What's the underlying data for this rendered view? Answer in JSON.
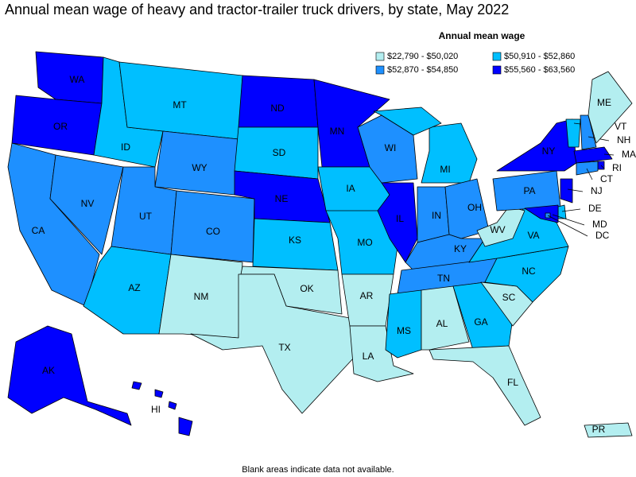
{
  "title": "Annual mean wage of heavy and tractor-trailer truck drivers, by state, May 2022",
  "legend": {
    "title": "Annual mean wage",
    "items": [
      {
        "label": "$22,790 - $50,020",
        "color": "#b3eef0"
      },
      {
        "label": "$50,910 - $52,860",
        "color": "#00bfff"
      },
      {
        "label": "$52,870 - $54,850",
        "color": "#1e90ff"
      },
      {
        "label": "$55,560 - $63,560",
        "color": "#0000ff"
      }
    ]
  },
  "states": [
    {
      "abbr": "WA",
      "level": 3
    },
    {
      "abbr": "OR",
      "level": 3
    },
    {
      "abbr": "CA",
      "level": 2
    },
    {
      "abbr": "NV",
      "level": 2
    },
    {
      "abbr": "ID",
      "level": 1
    },
    {
      "abbr": "MT",
      "level": 1
    },
    {
      "abbr": "WY",
      "level": 2
    },
    {
      "abbr": "UT",
      "level": 2
    },
    {
      "abbr": "CO",
      "level": 2
    },
    {
      "abbr": "AZ",
      "level": 1
    },
    {
      "abbr": "NM",
      "level": 0
    },
    {
      "abbr": "ND",
      "level": 3
    },
    {
      "abbr": "SD",
      "level": 1
    },
    {
      "abbr": "NE",
      "level": 3
    },
    {
      "abbr": "KS",
      "level": 1
    },
    {
      "abbr": "OK",
      "level": 0
    },
    {
      "abbr": "TX",
      "level": 0
    },
    {
      "abbr": "MN",
      "level": 3
    },
    {
      "abbr": "IA",
      "level": 1
    },
    {
      "abbr": "MO",
      "level": 1
    },
    {
      "abbr": "AR",
      "level": 0
    },
    {
      "abbr": "LA",
      "level": 0
    },
    {
      "abbr": "WI",
      "level": 2
    },
    {
      "abbr": "IL",
      "level": 3
    },
    {
      "abbr": "MI",
      "level": 1
    },
    {
      "abbr": "IN",
      "level": 2
    },
    {
      "abbr": "OH",
      "level": 2
    },
    {
      "abbr": "KY",
      "level": 2
    },
    {
      "abbr": "TN",
      "level": 2
    },
    {
      "abbr": "MS",
      "level": 1
    },
    {
      "abbr": "AL",
      "level": 0
    },
    {
      "abbr": "GA",
      "level": 1
    },
    {
      "abbr": "FL",
      "level": 0
    },
    {
      "abbr": "SC",
      "level": 0
    },
    {
      "abbr": "NC",
      "level": 1
    },
    {
      "abbr": "VA",
      "level": 1
    },
    {
      "abbr": "WV",
      "level": 0
    },
    {
      "abbr": "PA",
      "level": 2
    },
    {
      "abbr": "NY",
      "level": 3
    },
    {
      "abbr": "VT",
      "level": 1
    },
    {
      "abbr": "NH",
      "level": 2
    },
    {
      "abbr": "ME",
      "level": 0
    },
    {
      "abbr": "MA",
      "level": 3
    },
    {
      "abbr": "RI",
      "level": 3
    },
    {
      "abbr": "CT",
      "level": 2
    },
    {
      "abbr": "NJ",
      "level": 3
    },
    {
      "abbr": "DE",
      "level": 1
    },
    {
      "abbr": "MD",
      "level": 3
    },
    {
      "abbr": "DC",
      "level": 2
    },
    {
      "abbr": "AK",
      "level": 3
    },
    {
      "abbr": "HI",
      "level": 3
    },
    {
      "abbr": "PR",
      "level": 0
    }
  ],
  "note": "Blank areas indicate data not available."
}
